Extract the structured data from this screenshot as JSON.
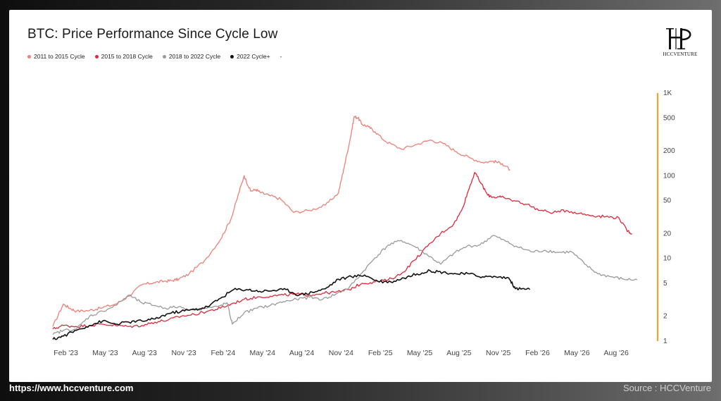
{
  "chart_data": {
    "type": "line",
    "title": "BTC: Price Performance Since Cycle Low",
    "xlabel": "",
    "ylabel": "",
    "y_scale": "log",
    "ylim": [
      1,
      1000
    ],
    "y_ticks": [
      1,
      2,
      5,
      10,
      20,
      50,
      100,
      200,
      500,
      1000
    ],
    "y_tick_labels": [
      "1",
      "2",
      "5",
      "10",
      "20",
      "50",
      "100",
      "200",
      "500",
      "1K"
    ],
    "x_ticks": [
      "Feb '23",
      "May '23",
      "Aug '23",
      "Nov '23",
      "Feb '24",
      "May '24",
      "Aug '24",
      "Nov '24",
      "Feb '25",
      "May '25",
      "Aug '25",
      "Nov '25",
      "Feb '26",
      "May '26",
      "Aug '26"
    ],
    "x_units": "months since Jan '23",
    "xlim": [
      0,
      46
    ],
    "legend_placement": "top-left",
    "legend_trailing": "-",
    "series": [
      {
        "name": "2011 to 2015 Cycle",
        "color": "#ef8078",
        "x": [
          0,
          0.8,
          1.3,
          1.8,
          2.8,
          3.6,
          4.8,
          5.8,
          6.8,
          7.7,
          8.5,
          9.1,
          9.6,
          10.4,
          11.6,
          12.8,
          13.6,
          14.1,
          14.6,
          15.1,
          15.5,
          15.9,
          16.5,
          17.4,
          18.4,
          19.6,
          20.8,
          21.8,
          22.2,
          22.7,
          23.0,
          23.3,
          23.6,
          24.1,
          24.6,
          25.4,
          26.6,
          27.8,
          28.8,
          29.8,
          30.8,
          31.8,
          32.8,
          33.6,
          34.3,
          34.9
        ],
        "y": [
          1.5,
          2.8,
          2.5,
          2.3,
          2.35,
          2.5,
          2.8,
          3.5,
          4.8,
          5.1,
          5.3,
          5.4,
          5.6,
          6.5,
          9.5,
          17,
          30,
          55,
          100,
          65,
          68,
          62,
          58,
          52,
          36,
          38,
          44,
          62,
          120,
          280,
          520,
          500,
          420,
          390,
          340,
          260,
          210,
          240,
          270,
          245,
          195,
          165,
          145,
          150,
          140,
          118
        ]
      },
      {
        "name": "2015 to 2018 Cycle",
        "color": "#e2283a",
        "x": [
          0,
          0.8,
          1.8,
          2.8,
          3.8,
          4.8,
          5.8,
          6.8,
          7.8,
          8.8,
          9.8,
          10.8,
          11.8,
          12.8,
          13.6,
          14.6,
          15.6,
          16.6,
          17.6,
          18.6,
          19.6,
          20.6,
          21.6,
          22.6,
          23.6,
          24.6,
          25.6,
          26.6,
          27.6,
          28.6,
          29.6,
          30.6,
          31.2,
          31.7,
          32.2,
          32.7,
          33.2,
          33.7,
          34.2,
          35.2,
          36.2,
          37.2,
          38.2,
          39.2,
          40.2,
          41.2,
          42.2,
          43.2,
          43.8,
          44.2
        ],
        "y": [
          1.4,
          1.55,
          1.5,
          1.55,
          1.6,
          1.55,
          1.5,
          1.55,
          1.7,
          1.8,
          2.0,
          2.1,
          2.3,
          2.5,
          2.8,
          3.2,
          3.4,
          3.5,
          3.6,
          3.7,
          3.6,
          3.8,
          3.9,
          4.2,
          5.0,
          5.2,
          5.5,
          6.5,
          9.5,
          14,
          20,
          26,
          38,
          65,
          110,
          80,
          58,
          55,
          55,
          50,
          45,
          38,
          36,
          38,
          35,
          33,
          32,
          31,
          22,
          20
        ]
      },
      {
        "name": "2018 to 2022 Cycle",
        "color": "#9a9a98",
        "x": [
          0,
          0.8,
          1.8,
          2.8,
          3.8,
          4.8,
          5.8,
          6.8,
          7.8,
          8.6,
          9.6,
          10.6,
          11.6,
          12.6,
          13.3,
          13.7,
          14.6,
          15.6,
          16.6,
          17.6,
          18.6,
          19.6,
          20.6,
          21.6,
          22.6,
          23.6,
          24.6,
          25.6,
          26.6,
          27.6,
          28.6,
          29.6,
          30.6,
          31.6,
          32.6,
          33.6,
          34.6,
          35.6,
          36.6,
          37.6,
          38.6,
          39.6,
          40.6,
          41.6,
          42.6,
          43.6,
          44.6
        ],
        "y": [
          1.2,
          1.35,
          1.4,
          2.0,
          2.3,
          2.7,
          3.6,
          2.9,
          2.7,
          2.5,
          2.6,
          2.4,
          2.5,
          2.6,
          2.9,
          1.6,
          2.2,
          2.5,
          2.7,
          3.0,
          3.2,
          3.4,
          3.2,
          3.7,
          4.4,
          6.7,
          10.2,
          14.5,
          16.5,
          14,
          11,
          8.5,
          11.5,
          14,
          14.5,
          19,
          16,
          13.5,
          12,
          12.5,
          11.8,
          12,
          8.5,
          6.5,
          6.0,
          5.6,
          5.5
        ]
      },
      {
        "name": "2022 Cycle+",
        "color": "#111111",
        "x": [
          0,
          0.8,
          1.8,
          2.8,
          3.8,
          4.8,
          5.8,
          6.8,
          7.8,
          8.8,
          9.8,
          10.8,
          11.8,
          12.8,
          13.8,
          14.8,
          15.8,
          16.8,
          17.8,
          18.8,
          19.8,
          20.8,
          21.8,
          22.8,
          23.8,
          24.8,
          25.8,
          26.8,
          27.8,
          28.8,
          29.8,
          30.8,
          31.8,
          32.8,
          33.8,
          34.8,
          35.3,
          35.8,
          36.4
        ],
        "y": [
          1.05,
          1.15,
          1.35,
          1.55,
          1.75,
          1.6,
          1.7,
          1.75,
          1.85,
          2.15,
          2.3,
          2.4,
          2.6,
          3.3,
          4.2,
          4.2,
          4.0,
          4.1,
          4.2,
          3.6,
          3.9,
          4.3,
          5.6,
          6.0,
          6.3,
          5.3,
          5.2,
          5.8,
          6.5,
          7.1,
          6.8,
          6.5,
          6.5,
          6.0,
          6.0,
          5.8,
          4.3,
          4.3,
          4.2
        ]
      }
    ]
  },
  "logo": {
    "text": "HCCVENTURE"
  },
  "footer": {
    "url": "https://www.hccventure.com",
    "source": "Source : HCCVenture"
  },
  "axis_accent_color": "#f5a13a"
}
